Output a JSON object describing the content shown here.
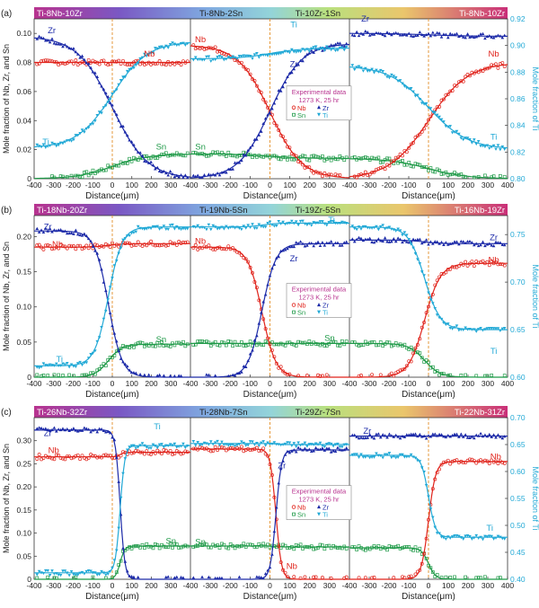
{
  "colors": {
    "Nb": "#e0231b",
    "Zr": "#1c2aa8",
    "Sn": "#1f9a48",
    "Ti": "#22a9d6",
    "interface": "#e69a3c",
    "ti_axis": "#22a9d6"
  },
  "chart_data": [
    {
      "type": "scatter",
      "panel_label": "(a)",
      "ylabel": "Mole fraction of Nb, Zr, and Sn",
      "y2label": "Mole fraction of Ti",
      "xlabel": "Distance(μm)",
      "couple_labels": [
        "Ti-8Nb-10Zr",
        "Ti-8Nb-2Sn",
        "Ti-10Zr-1Sn",
        "Ti-8Nb-10Zr"
      ],
      "ylim": [
        0,
        0.11
      ],
      "yticks": [
        "0",
        "0.02",
        "0.04",
        "0.06",
        "0.08",
        "0.10"
      ],
      "y2lim": [
        0.8,
        0.92
      ],
      "y2ticks": [
        "0.80",
        "0.82",
        "0.84",
        "0.86",
        "0.88",
        "0.90",
        "0.92"
      ],
      "xlim": [
        -400,
        400
      ],
      "xticks_by_subpanel": [
        [
          "-400",
          "-300",
          "-200",
          "-100",
          "0",
          "100",
          "200",
          "300"
        ],
        [
          "-400",
          "-300",
          "-200",
          "-100",
          "0",
          "100",
          "200",
          "300"
        ],
        [
          "-400",
          "-300",
          "-200",
          "-100",
          "0",
          "100",
          "200",
          "300",
          "400"
        ]
      ],
      "legend": {
        "title": "Experimental data",
        "condition": "1273 K, 25 hr",
        "entries": [
          "Nb",
          "Zr",
          "Sn",
          "Ti"
        ]
      },
      "subpanels": [
        {
          "species": {
            "Nb": [
              0.08,
              0.08
            ],
            "Zr": [
              0.098,
              0.0
            ],
            "Sn": [
              0.0,
              0.017
            ],
            "Ti": [
              0.823,
              0.903
            ]
          },
          "x0": 0,
          "w": 90
        },
        {
          "species": {
            "Nb": [
              0.092,
              0.0
            ],
            "Zr": [
              0.0,
              0.093
            ],
            "Sn": [
              0.017,
              0.014
            ],
            "Ti": [
              0.89,
              0.898
            ]
          },
          "x0": 0,
          "w": 80
        },
        {
          "species": {
            "Nb": [
              0.0,
              0.08
            ],
            "Zr": [
              0.1,
              0.098
            ],
            "Sn": [
              0.014,
              0.0
            ],
            "Ti": [
              0.885,
              0.822
            ]
          },
          "x0": 0,
          "w": 100
        }
      ],
      "series_labels": [
        {
          "sub": 0,
          "name": "Zr",
          "x": -310,
          "y": 0.1
        },
        {
          "sub": 0,
          "name": "Nb",
          "x": 190,
          "y": 0.084
        },
        {
          "sub": 0,
          "name": "Ti",
          "x": -340,
          "y": 0.0235
        },
        {
          "sub": 0,
          "name": "Sn",
          "x": 250,
          "y": 0.02
        },
        {
          "sub": 1,
          "name": "Nb",
          "x": -350,
          "y": 0.094
        },
        {
          "sub": 1,
          "name": "Ti",
          "x": 120,
          "y": 0.104
        },
        {
          "sub": 1,
          "name": "Zr",
          "x": 120,
          "y": 0.077
        },
        {
          "sub": 1,
          "name": "Sn",
          "x": -350,
          "y": 0.02
        },
        {
          "sub": 2,
          "name": "Zr",
          "x": -320,
          "y": 0.108
        },
        {
          "sub": 2,
          "name": "Nb",
          "x": 330,
          "y": 0.084
        },
        {
          "sub": 2,
          "name": "Ti",
          "x": 330,
          "y": 0.027
        }
      ]
    },
    {
      "type": "scatter",
      "panel_label": "(b)",
      "ylabel": "Mole fraction of Nb, Zr, and Sn",
      "y2label": "Mole fraction of Ti",
      "xlabel": "Distance(μm)",
      "couple_labels": [
        "Ti-18Nb-20Zr",
        "Ti-19Nb-5Sn",
        "Ti-19Zr-5Sn",
        "Ti-16Nb-19Zr"
      ],
      "ylim": [
        0,
        0.23
      ],
      "yticks": [
        "0",
        "0.05",
        "0.10",
        "0.15",
        "0.20"
      ],
      "y2lim": [
        0.6,
        0.77
      ],
      "y2ticks": [
        "0.60",
        "0.65",
        "0.70",
        "0.75"
      ],
      "xlim": [
        -400,
        400
      ],
      "xticks_by_subpanel": [
        [
          "-400",
          "-300",
          "-200",
          "-100",
          "0",
          "100",
          "200",
          "300"
        ],
        [
          "-400",
          "-300",
          "-200",
          "-100",
          "0",
          "100",
          "200",
          "300"
        ],
        [
          "-400",
          "-300",
          "-200",
          "-100",
          "0",
          "100",
          "200",
          "300",
          "400"
        ]
      ],
      "legend": {
        "title": "Experimental data",
        "condition": "1273 K, 25 hr",
        "entries": [
          "Nb",
          "Zr",
          "Sn",
          "Ti"
        ]
      },
      "subpanels": [
        {
          "species": {
            "Nb": [
              0.185,
              0.19
            ],
            "Zr": [
              0.208,
              0.0
            ],
            "Sn": [
              0.0,
              0.047
            ],
            "Ti": [
              0.612,
              0.758
            ]
          },
          "x0": -20,
          "w": 35
        },
        {
          "species": {
            "Nb": [
              0.185,
              0.0
            ],
            "Zr": [
              0.0,
              0.19
            ],
            "Sn": [
              0.048,
              0.048
            ],
            "Ti": [
              0.758,
              0.762
            ]
          },
          "x0": -40,
          "w": 35
        },
        {
          "species": {
            "Nb": [
              0.0,
              0.162
            ],
            "Zr": [
              0.195,
              0.19
            ],
            "Sn": [
              0.048,
              0.0
            ],
            "Ti": [
              0.758,
              0.65
            ]
          },
          "x0": -20,
          "w": 40
        }
      ],
      "series_labels": [
        {
          "sub": 0,
          "name": "Zr",
          "x": -330,
          "y": 0.21
        },
        {
          "sub": 0,
          "name": "Nb",
          "x": -280,
          "y": 0.185
        },
        {
          "sub": 0,
          "name": "Ti",
          "x": -270,
          "y": 0.022
        },
        {
          "sub": 0,
          "name": "Sn",
          "x": 250,
          "y": 0.05
        },
        {
          "sub": 1,
          "name": "Nb",
          "x": -350,
          "y": 0.19
        },
        {
          "sub": 1,
          "name": "Zr",
          "x": 120,
          "y": 0.165
        },
        {
          "sub": 1,
          "name": "Ti",
          "x": 310,
          "y": 0.22
        },
        {
          "sub": 1,
          "name": "Sn",
          "x": 300,
          "y": 0.052
        },
        {
          "sub": 2,
          "name": "Zr",
          "x": 330,
          "y": 0.195
        },
        {
          "sub": 2,
          "name": "Nb",
          "x": 330,
          "y": 0.163
        },
        {
          "sub": 2,
          "name": "Ti",
          "x": 330,
          "y": 0.033
        }
      ]
    },
    {
      "type": "scatter",
      "panel_label": "(c)",
      "ylabel": "Mole fraction of Nb, Zr, and Sn",
      "y2label": "Mole fraction of Ti",
      "xlabel": "Distance(μm)",
      "couple_labels": [
        "Ti-26Nb-32Zr",
        "Ti-28Nb-7Sn",
        "Ti-29Zr-7Sn",
        "Ti-22Nb-31Zr"
      ],
      "ylim": [
        0,
        0.35
      ],
      "yticks": [
        "0",
        "0.05",
        "0.10",
        "0.15",
        "0.20",
        "0.25",
        "0.30"
      ],
      "y2lim": [
        0.4,
        0.7
      ],
      "y2ticks": [
        "0.40",
        "0.45",
        "0.50",
        "0.55",
        "0.60",
        "0.65",
        "0.70"
      ],
      "xlim": [
        -400,
        400
      ],
      "xticks_by_subpanel": [
        [
          "-400",
          "-300",
          "-200",
          "-100",
          "0",
          "100",
          "200",
          "300"
        ],
        [
          "-400",
          "-300",
          "-200",
          "-100",
          "0",
          "100",
          "200",
          "300"
        ],
        [
          "-400",
          "-300",
          "-200",
          "-100",
          "0",
          "100",
          "200",
          "300",
          "400"
        ]
      ],
      "legend": {
        "title": "Experimental data",
        "condition": "1273 K, 25 hr",
        "entries": [
          "Nb",
          "Zr",
          "Sn",
          "Ti"
        ]
      },
      "subpanels": [
        {
          "species": {
            "Nb": [
              0.265,
              0.275
            ],
            "Zr": [
              0.323,
              0.0
            ],
            "Sn": [
              0.0,
              0.072
            ],
            "Ti": [
              0.412,
              0.648
            ]
          },
          "x0": 40,
          "w": 12
        },
        {
          "species": {
            "Nb": [
              0.282,
              0.0
            ],
            "Zr": [
              0.0,
              0.28
            ],
            "Sn": [
              0.072,
              0.07
            ],
            "Ti": [
              0.652,
              0.65
            ]
          },
          "x0": 30,
          "w": 14
        },
        {
          "species": {
            "Nb": [
              0.0,
              0.255
            ],
            "Zr": [
              0.31,
              0.31
            ],
            "Sn": [
              0.068,
              0.0
            ],
            "Ti": [
              0.63,
              0.478
            ]
          },
          "x0": 0,
          "w": 18
        }
      ],
      "series_labels": [
        {
          "sub": 0,
          "name": "Zr",
          "x": -330,
          "y": 0.31
        },
        {
          "sub": 0,
          "name": "Nb",
          "x": -300,
          "y": 0.273
        },
        {
          "sub": 0,
          "name": "Sn",
          "x": 300,
          "y": 0.077
        },
        {
          "sub": 0,
          "name": "Ti",
          "x": 230,
          "y": 0.325
        },
        {
          "sub": 1,
          "name": "Zr",
          "x": 60,
          "y": 0.24
        },
        {
          "sub": 1,
          "name": "Nb",
          "x": 110,
          "y": 0.022
        },
        {
          "sub": 1,
          "name": "Sn",
          "x": -350,
          "y": 0.075
        },
        {
          "sub": 2,
          "name": "Zr",
          "x": -310,
          "y": 0.315
        },
        {
          "sub": 2,
          "name": "Nb",
          "x": 340,
          "y": 0.26
        },
        {
          "sub": 2,
          "name": "Ti",
          "x": 310,
          "y": 0.105
        }
      ]
    }
  ]
}
